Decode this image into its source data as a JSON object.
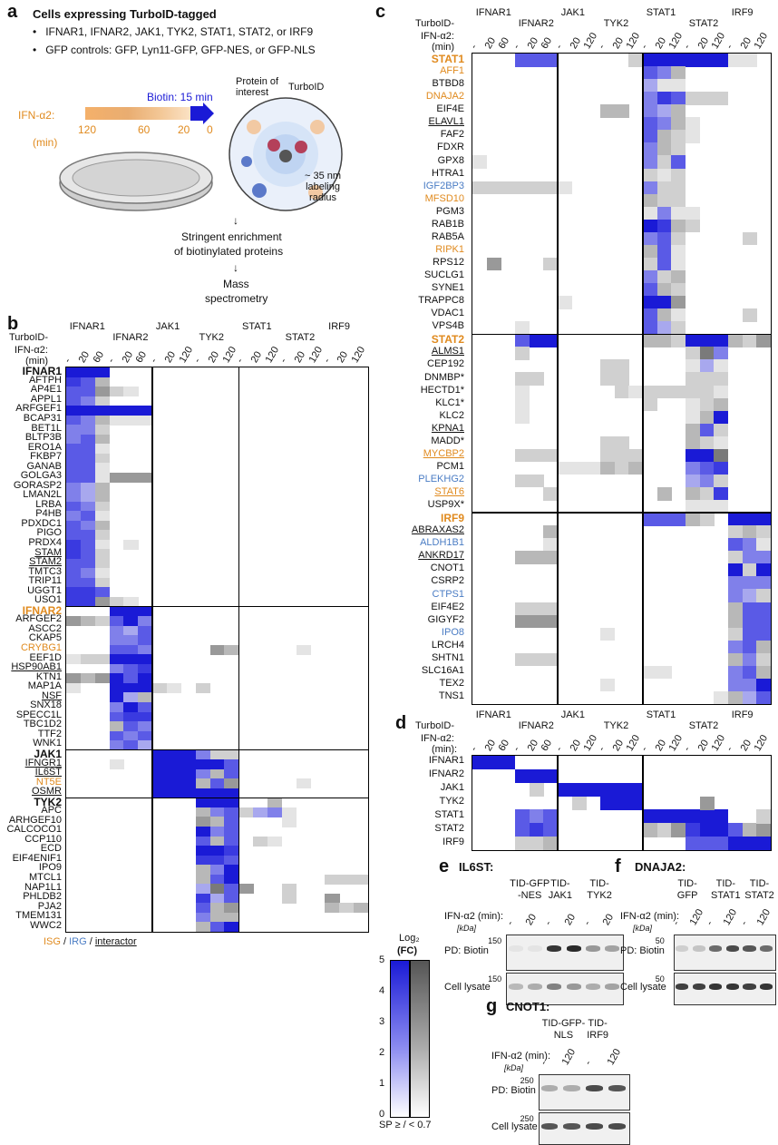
{
  "colors": {
    "strong_blue": "#1a1ad6",
    "grey": "#888888",
    "orange": "#e08a1e",
    "blue_label": "#4a7cc4"
  },
  "panel_a": {
    "letter": "a",
    "title": "Cells expressing TurboID-tagged",
    "bullet1": "IFNAR1, IFNAR2, JAK1, TYK2, STAT1, STAT2, or IRF9",
    "bullet2": "GFP controls: GFP, Lyn11-GFP, GFP-NES, or GFP-NLS",
    "biotin": "Biotin: 15 min",
    "ifn_label": "IFN-α2:",
    "ifn_unit": "(min)",
    "ticks": [
      "120",
      "60",
      "20",
      "0"
    ],
    "protein_label": "Protein of\ninterest",
    "turboid_label": "TurboID",
    "radius_label": "~ 35 nm\nlabeling\nradius",
    "step1": "Stringent enrichment",
    "step1b": "of biotinylated proteins",
    "step2": "Mass",
    "step2b": "spectrometry"
  },
  "baits": [
    "IFNAR1",
    "IFNAR2",
    "JAK1",
    "TYK2",
    "STAT1",
    "STAT2",
    "IRF9"
  ],
  "turboid_label": "TurboID-",
  "ifn_label": "IFN-α2:",
  "ifn_unit": "(min)",
  "ifn_unit_d": "(min):",
  "timepoints_short": [
    "-",
    "20",
    "60"
  ],
  "timepoints_long": [
    "-",
    "20",
    "120"
  ],
  "panel_b": {
    "letter": "b",
    "rows": [
      {
        "name": "IFNAR1",
        "style": "bold"
      },
      {
        "name": "AFTPH"
      },
      {
        "name": "AP4E1"
      },
      {
        "name": "APPL1"
      },
      {
        "name": "ARFGEF1"
      },
      {
        "name": "BCAP31"
      },
      {
        "name": "BET1L"
      },
      {
        "name": "BLTP3B"
      },
      {
        "name": "ERO1A"
      },
      {
        "name": "FKBP7"
      },
      {
        "name": "GANAB"
      },
      {
        "name": "GOLGA3"
      },
      {
        "name": "GORASP2"
      },
      {
        "name": "LMAN2L"
      },
      {
        "name": "LRBA"
      },
      {
        "name": "P4HB"
      },
      {
        "name": "PDXDC1"
      },
      {
        "name": "PIGO"
      },
      {
        "name": "PRDX4"
      },
      {
        "name": "STAM",
        "style": "ul"
      },
      {
        "name": "STAM2",
        "style": "ul"
      },
      {
        "name": "TMTC3"
      },
      {
        "name": "TRIP11"
      },
      {
        "name": "UGGT1"
      },
      {
        "name": "USO1"
      },
      {
        "name": "IFNAR2",
        "style": "bold orange"
      },
      {
        "name": "ARFGEF2"
      },
      {
        "name": "ASCC2"
      },
      {
        "name": "CKAP5"
      },
      {
        "name": "CRYBG1",
        "style": "orange"
      },
      {
        "name": "EEF1D"
      },
      {
        "name": "HSP90AB1",
        "style": "ul"
      },
      {
        "name": "KTN1"
      },
      {
        "name": "MAP1A"
      },
      {
        "name": "NSF",
        "style": "ul"
      },
      {
        "name": "SNX18"
      },
      {
        "name": "SPECC1L"
      },
      {
        "name": "TBC1D2"
      },
      {
        "name": "TTF2"
      },
      {
        "name": "WNK1"
      },
      {
        "name": "JAK1",
        "style": "bold"
      },
      {
        "name": "IFNGR1",
        "style": "ul"
      },
      {
        "name": "IL6ST",
        "style": "ul"
      },
      {
        "name": "NT5E",
        "style": "orange"
      },
      {
        "name": "OSMR",
        "style": "ul"
      },
      {
        "name": "TYK2",
        "style": "bold"
      },
      {
        "name": "APC"
      },
      {
        "name": "ARHGEF10"
      },
      {
        "name": "CALCOCO1"
      },
      {
        "name": "CCP110"
      },
      {
        "name": "ECD"
      },
      {
        "name": "EIF4ENIF1"
      },
      {
        "name": "IPO9"
      },
      {
        "name": "MTCL1"
      },
      {
        "name": "NAP1L1"
      },
      {
        "name": "PHLDB2"
      },
      {
        "name": "PJA2"
      },
      {
        "name": "TMEM131"
      },
      {
        "name": "WWC2"
      }
    ],
    "legend_isg": "ISG",
    "legend_irg": "IRG",
    "legend_interactor": "interactor",
    "legend_sep": " / "
  },
  "panel_c": {
    "letter": "c",
    "rows": [
      {
        "name": "STAT1",
        "style": "bold orange"
      },
      {
        "name": "AFF1",
        "style": "orange"
      },
      {
        "name": "BTBD8"
      },
      {
        "name": "DNAJA2",
        "style": "orange"
      },
      {
        "name": "EIF4E"
      },
      {
        "name": "ELAVL1",
        "style": "ul"
      },
      {
        "name": "FAF2"
      },
      {
        "name": "FDXR"
      },
      {
        "name": "GPX8"
      },
      {
        "name": "HTRA1"
      },
      {
        "name": "IGF2BP3",
        "style": "blue"
      },
      {
        "name": "MFSD10",
        "style": "orange"
      },
      {
        "name": "PGM3"
      },
      {
        "name": "RAB1B"
      },
      {
        "name": "RAB5A"
      },
      {
        "name": "RIPK1",
        "style": "orange"
      },
      {
        "name": "RPS12"
      },
      {
        "name": "SUCLG1"
      },
      {
        "name": "SYNE1"
      },
      {
        "name": "TRAPPC8"
      },
      {
        "name": "VDAC1"
      },
      {
        "name": "VPS4B"
      },
      {
        "name": "STAT2",
        "style": "bold orange"
      },
      {
        "name": "ALMS1",
        "style": "ul"
      },
      {
        "name": "CEP192"
      },
      {
        "name": "DNMBP*"
      },
      {
        "name": "HECTD1*"
      },
      {
        "name": "KLC1*"
      },
      {
        "name": "KLC2"
      },
      {
        "name": "KPNA1",
        "style": "ul"
      },
      {
        "name": "MADD*"
      },
      {
        "name": "MYCBP2",
        "style": "orange ul"
      },
      {
        "name": "PCM1"
      },
      {
        "name": "PLEKHG2",
        "style": "blue"
      },
      {
        "name": "STAT6",
        "style": "orange ul"
      },
      {
        "name": "USP9X*"
      },
      {
        "name": "IRF9",
        "style": "bold orange"
      },
      {
        "name": "ABRAXAS2",
        "style": "ul"
      },
      {
        "name": "ALDH1B1",
        "style": "blue"
      },
      {
        "name": "ANKRD17",
        "style": "ul"
      },
      {
        "name": "CNOT1"
      },
      {
        "name": "CSRP2"
      },
      {
        "name": "CTPS1",
        "style": "blue"
      },
      {
        "name": "EIF4E2"
      },
      {
        "name": "GIGYF2"
      },
      {
        "name": "IPO8",
        "style": "blue"
      },
      {
        "name": "LRCH4"
      },
      {
        "name": "SHTN1"
      },
      {
        "name": "SLC16A1"
      },
      {
        "name": "TEX2"
      },
      {
        "name": "TNS1"
      }
    ]
  },
  "panel_d": {
    "letter": "d",
    "ifn_label": "IFN-α2",
    "rows": [
      {
        "name": "IFNAR1"
      },
      {
        "name": "IFNAR2"
      },
      {
        "name": "JAK1"
      },
      {
        "name": "TYK2"
      },
      {
        "name": "STAT1"
      },
      {
        "name": "STAT2"
      },
      {
        "name": "IRF9"
      }
    ]
  },
  "legend": {
    "title": "Log₂",
    "subtitle": "(FC)",
    "ticks": [
      "5",
      "4",
      "3",
      "2",
      "1",
      "0"
    ],
    "footer": "SP ≥ / < 0.7"
  },
  "panel_e": {
    "letter": "e",
    "title": "IL6ST:",
    "lanes": [
      "TID-GFP\n-NES",
      "TID-\nJAK1",
      "TID-\nTYK2"
    ],
    "ifn": "IFN-α2 (min):",
    "kda": "[kDa]",
    "times": [
      "-",
      "20",
      "-",
      "20",
      "-",
      "20"
    ],
    "pd": "PD: Biotin",
    "lysate": "Cell lysate",
    "mw": "150"
  },
  "panel_f": {
    "letter": "f",
    "title": "DNAJA2:",
    "lanes": [
      "TID-\nGFP",
      "TID-\nSTAT1",
      "TID-\nSTAT2"
    ],
    "ifn": "IFN-α2 (min):",
    "kda": "[kDa]",
    "times": [
      "-",
      "120",
      "-",
      "120",
      "-",
      "120"
    ],
    "pd": "PD: Biotin",
    "lysate": "Cell lysate",
    "mw": "50"
  },
  "panel_g": {
    "letter": "g",
    "title": "CNOT1:",
    "lanes": [
      "TID-GFP-\nNLS",
      "TID-\nIRF9"
    ],
    "ifn": "IFN-α2 (min):",
    "kda": "[kDa]",
    "times": [
      "-",
      "120",
      "-",
      "120"
    ],
    "pd": "PD: Biotin",
    "lysate": "Cell lysate",
    "mw": "250"
  }
}
